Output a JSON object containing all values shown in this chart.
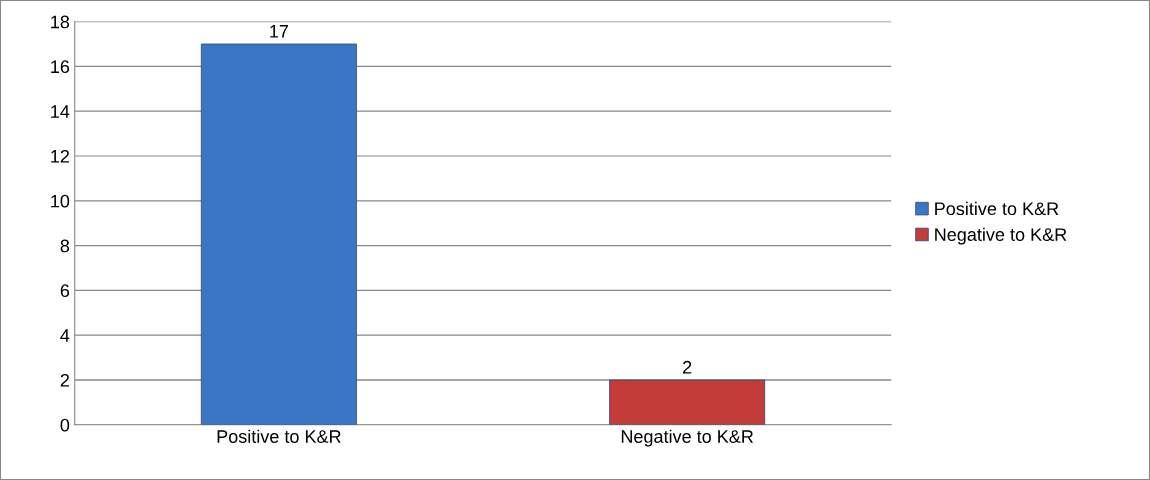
{
  "chart_data": {
    "type": "bar",
    "categories": [
      "Positive to K&R",
      "Negative to K&R"
    ],
    "series": [
      {
        "name": "Positive to K&R",
        "color": "#3a76c4",
        "values": [
          17,
          null
        ]
      },
      {
        "name": "Negative to K&R",
        "color": "#c43c3a",
        "values": [
          null,
          2
        ]
      }
    ],
    "ylim": [
      0,
      18
    ],
    "yticks": [
      0,
      2,
      4,
      6,
      8,
      10,
      12,
      14,
      16,
      18
    ],
    "grid": "y",
    "legend": "right",
    "data_labels": true
  }
}
